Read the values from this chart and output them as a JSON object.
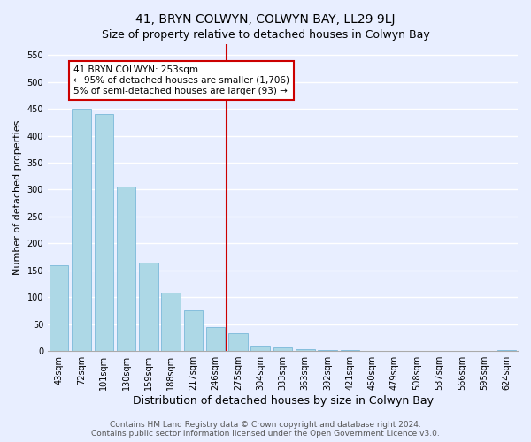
{
  "title": "41, BRYN COLWYN, COLWYN BAY, LL29 9LJ",
  "subtitle": "Size of property relative to detached houses in Colwyn Bay",
  "xlabel": "Distribution of detached houses by size in Colwyn Bay",
  "ylabel": "Number of detached properties",
  "bar_labels": [
    "43sqm",
    "72sqm",
    "101sqm",
    "130sqm",
    "159sqm",
    "188sqm",
    "217sqm",
    "246sqm",
    "275sqm",
    "304sqm",
    "333sqm",
    "363sqm",
    "392sqm",
    "421sqm",
    "450sqm",
    "479sqm",
    "508sqm",
    "537sqm",
    "566sqm",
    "595sqm",
    "624sqm"
  ],
  "bar_values": [
    160,
    450,
    440,
    305,
    165,
    108,
    75,
    45,
    33,
    10,
    7,
    3,
    2,
    1,
    0,
    0,
    0,
    0,
    0,
    0,
    2
  ],
  "bar_color": "#add8e6",
  "bar_edge_color": "#6ab0d4",
  "vline_x_index": 7,
  "vline_color": "#cc0000",
  "annotation_title": "41 BRYN COLWYN: 253sqm",
  "annotation_line1": "← 95% of detached houses are smaller (1,706)",
  "annotation_line2": "5% of semi-detached houses are larger (93) →",
  "annotation_box_color": "#ffffff",
  "annotation_box_edge_color": "#cc0000",
  "ylim": [
    0,
    570
  ],
  "yticks": [
    0,
    50,
    100,
    150,
    200,
    250,
    300,
    350,
    400,
    450,
    500,
    550
  ],
  "footer_line1": "Contains HM Land Registry data © Crown copyright and database right 2024.",
  "footer_line2": "Contains public sector information licensed under the Open Government Licence v3.0.",
  "background_color": "#e8eeff",
  "grid_color": "#ffffff",
  "title_fontsize": 10,
  "subtitle_fontsize": 9,
  "xlabel_fontsize": 9,
  "ylabel_fontsize": 8,
  "tick_fontsize": 7,
  "footer_fontsize": 6.5,
  "annotation_fontsize": 7.5
}
